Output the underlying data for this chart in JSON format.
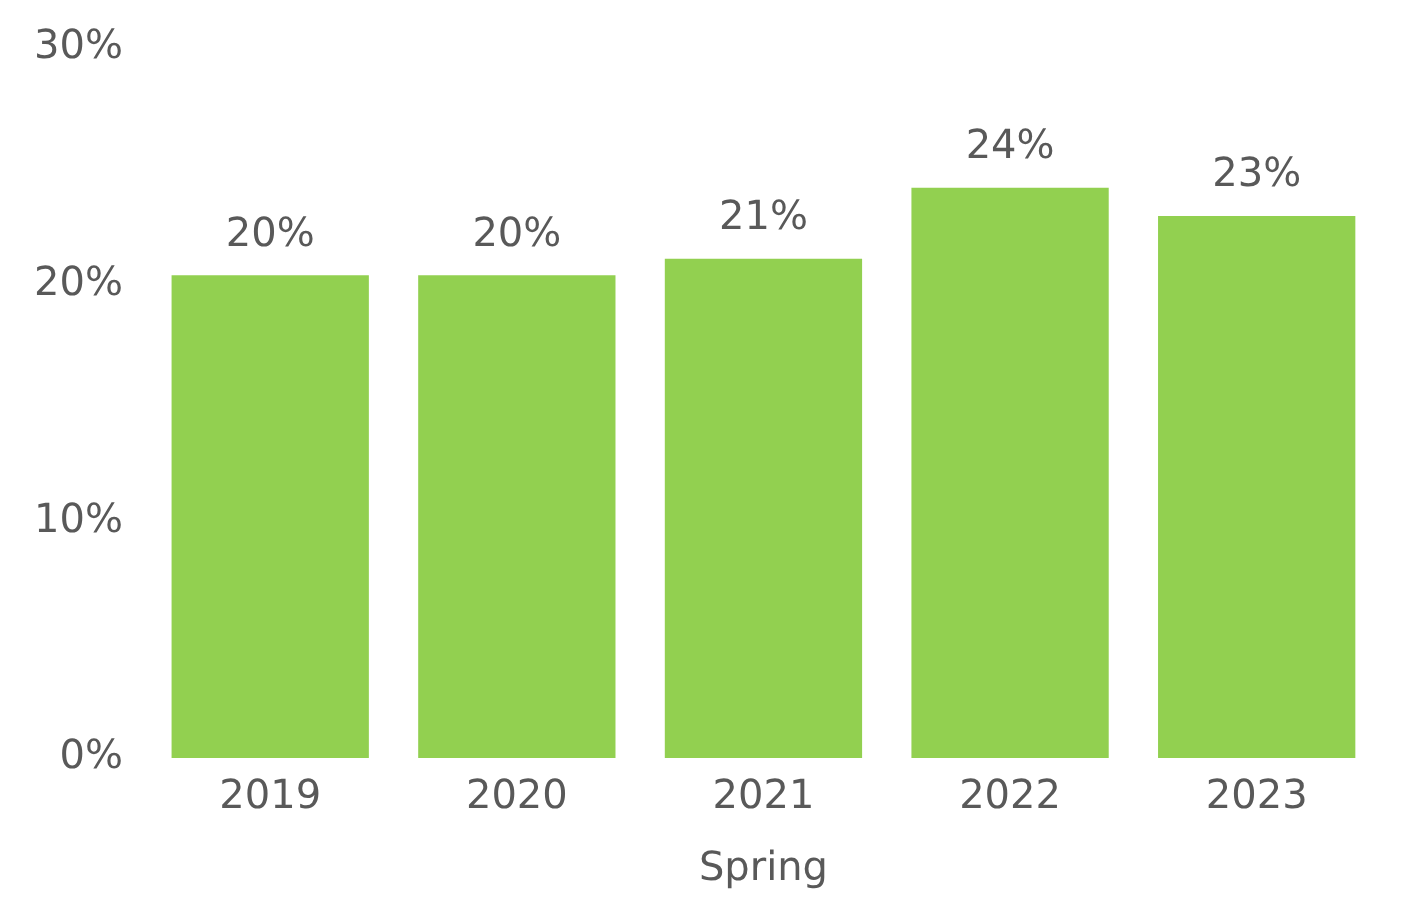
{
  "chart_data": {
    "type": "bar",
    "xlabel": "Spring",
    "categories": [
      "2019",
      "2020",
      "2021",
      "2022",
      "2023"
    ],
    "values": [
      20.4,
      20.4,
      21.1,
      24.1,
      22.9
    ],
    "value_labels": [
      "20%",
      "20%",
      "21%",
      "24%",
      "23%"
    ],
    "color": "#92d050",
    "ylim": [
      0,
      30
    ],
    "yticks": [
      {
        "value": 0,
        "label": "0%"
      },
      {
        "value": 10,
        "label": "10%"
      },
      {
        "value": 20,
        "label": "20%"
      },
      {
        "value": 30,
        "label": "30%"
      }
    ],
    "grid": false,
    "legend": false
  }
}
